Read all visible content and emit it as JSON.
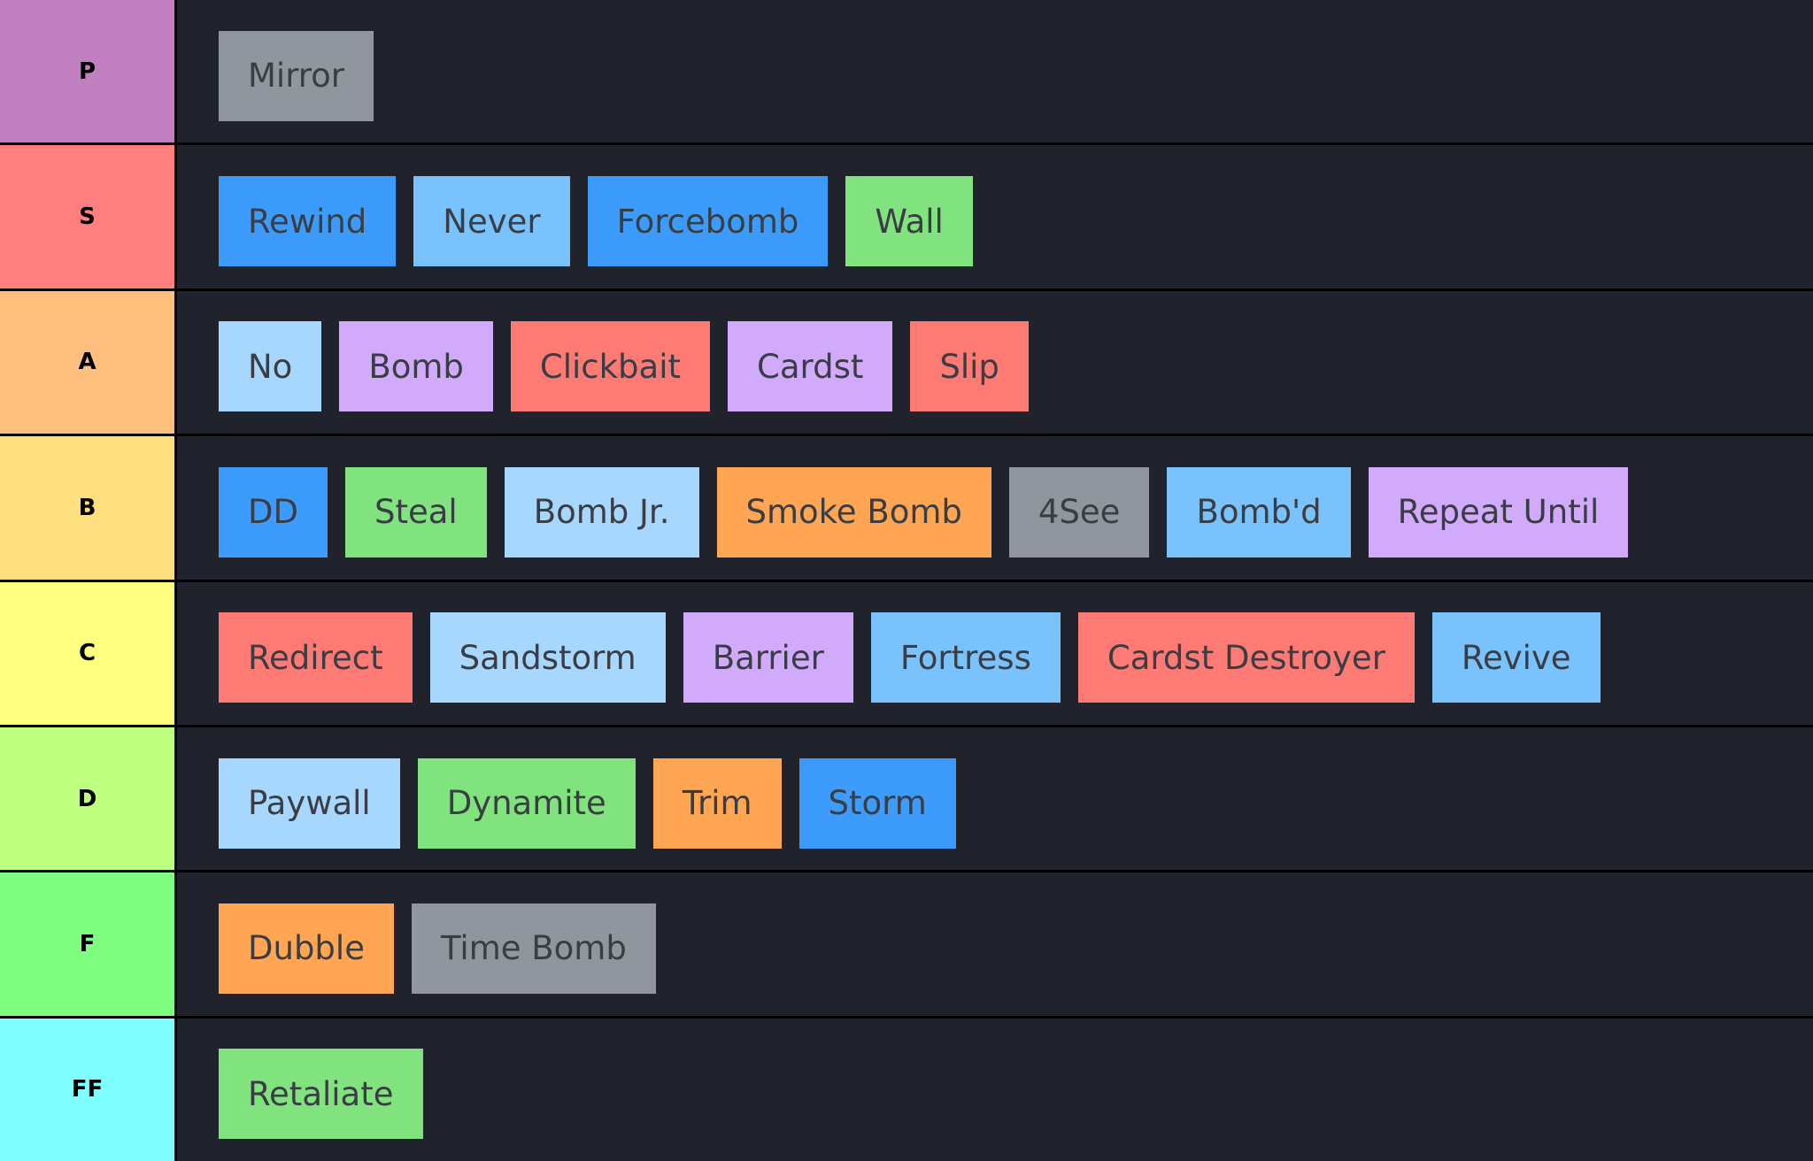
{
  "palette": {
    "blue": "#3d9cfb",
    "lightblue": "#79c2fb",
    "paleblue": "#a8d7fd",
    "green": "#80e37e",
    "purple": "#d1aafc",
    "red": "#fe7a74",
    "orange": "#fea653",
    "gray": "#8f969d"
  },
  "tiers": [
    {
      "label": "P",
      "color": "#c080c0",
      "items": [
        {
          "name": "Mirror",
          "color": "gray"
        }
      ]
    },
    {
      "label": "S",
      "color": "#fe7f7e",
      "items": [
        {
          "name": "Rewind",
          "color": "blue"
        },
        {
          "name": "Never",
          "color": "lightblue"
        },
        {
          "name": "Forcebomb",
          "color": "blue"
        },
        {
          "name": "Wall",
          "color": "green"
        }
      ]
    },
    {
      "label": "A",
      "color": "#febf7f",
      "items": [
        {
          "name": "No",
          "color": "paleblue"
        },
        {
          "name": "Bomb",
          "color": "purple"
        },
        {
          "name": "Clickbait",
          "color": "red"
        },
        {
          "name": "Cardst",
          "color": "purple"
        },
        {
          "name": "Slip",
          "color": "red"
        }
      ]
    },
    {
      "label": "B",
      "color": "#fedf7f",
      "items": [
        {
          "name": "DD",
          "color": "blue"
        },
        {
          "name": "Steal",
          "color": "green"
        },
        {
          "name": "Bomb Jr.",
          "color": "paleblue"
        },
        {
          "name": "Smoke Bomb",
          "color": "orange"
        },
        {
          "name": "4See",
          "color": "gray"
        },
        {
          "name": "Bomb'd",
          "color": "lightblue"
        },
        {
          "name": "Repeat Until",
          "color": "purple"
        }
      ]
    },
    {
      "label": "C",
      "color": "#feff7f",
      "items": [
        {
          "name": "Redirect",
          "color": "red"
        },
        {
          "name": "Sandstorm",
          "color": "paleblue"
        },
        {
          "name": "Barrier",
          "color": "purple"
        },
        {
          "name": "Fortress",
          "color": "lightblue"
        },
        {
          "name": "Cardst Destroyer",
          "color": "red"
        },
        {
          "name": "Revive",
          "color": "lightblue"
        }
      ]
    },
    {
      "label": "D",
      "color": "#bfff7f",
      "items": [
        {
          "name": "Paywall",
          "color": "paleblue"
        },
        {
          "name": "Dynamite",
          "color": "green"
        },
        {
          "name": "Trim",
          "color": "orange"
        },
        {
          "name": "Storm",
          "color": "blue"
        }
      ]
    },
    {
      "label": "F",
      "color": "#7fff7f",
      "items": [
        {
          "name": "Dubble",
          "color": "orange"
        },
        {
          "name": "Time Bomb",
          "color": "gray"
        }
      ]
    },
    {
      "label": "FF",
      "color": "#7fffff",
      "items": [
        {
          "name": "Retaliate",
          "color": "green"
        }
      ]
    }
  ]
}
